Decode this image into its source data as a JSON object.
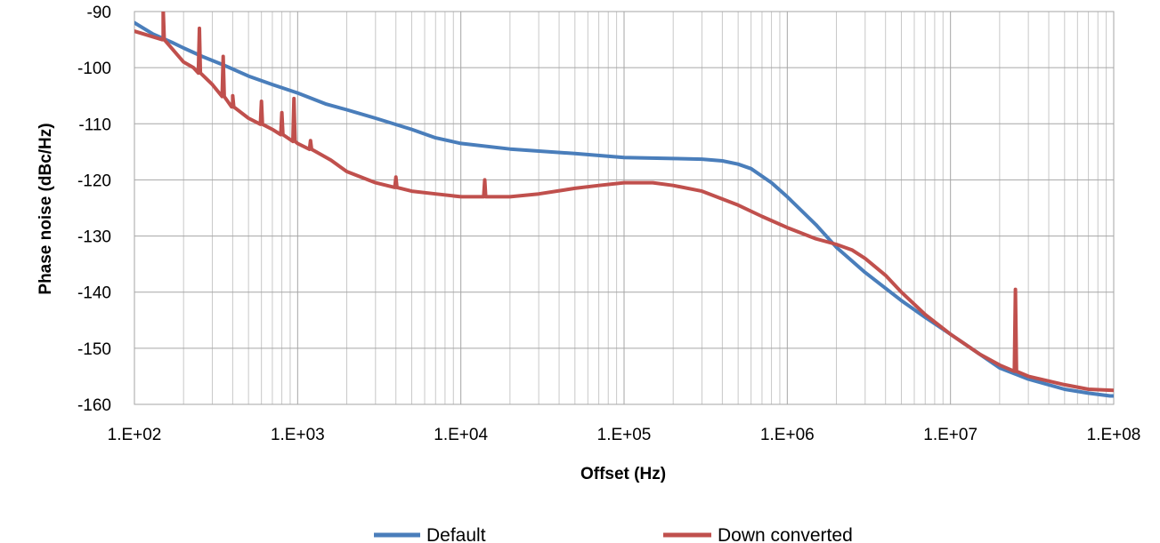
{
  "chart_data": {
    "type": "line",
    "xscale": "log",
    "xlabel": "Offset (Hz)",
    "ylabel": "Phase noise (dBc/Hz)",
    "xlim": [
      100,
      100000000
    ],
    "ylim": [
      -160,
      -90
    ],
    "xticks": [
      100,
      1000,
      10000,
      100000,
      1000000,
      10000000,
      100000000
    ],
    "xtick_labels": [
      "1.E+02",
      "1.E+03",
      "1.E+04",
      "1.E+05",
      "1.E+06",
      "1.E+07",
      "1.E+08"
    ],
    "yticks": [
      -160,
      -150,
      -140,
      -130,
      -120,
      -110,
      -100,
      -90
    ],
    "ytick_labels": [
      "-160",
      "-150",
      "-140",
      "-130",
      "-120",
      "-110",
      "-100",
      "-90"
    ],
    "grid": true,
    "legend_position": "bottom",
    "series": [
      {
        "name": "Default",
        "color": "#4a7ebb",
        "points": [
          [
            100,
            -92
          ],
          [
            130,
            -94
          ],
          [
            170,
            -95.5
          ],
          [
            200,
            -96.5
          ],
          [
            260,
            -98
          ],
          [
            350,
            -99.5
          ],
          [
            500,
            -101.5
          ],
          [
            700,
            -103
          ],
          [
            1000,
            -104.5
          ],
          [
            1500,
            -106.5
          ],
          [
            2000,
            -107.5
          ],
          [
            3000,
            -109
          ],
          [
            5000,
            -111
          ],
          [
            7000,
            -112.5
          ],
          [
            10000,
            -113.5
          ],
          [
            20000,
            -114.5
          ],
          [
            50000,
            -115.3
          ],
          [
            100000,
            -116
          ],
          [
            200000,
            -116.2
          ],
          [
            300000,
            -116.3
          ],
          [
            400000,
            -116.6
          ],
          [
            500000,
            -117.2
          ],
          [
            600000,
            -118
          ],
          [
            800000,
            -120.5
          ],
          [
            1000000,
            -123
          ],
          [
            1500000,
            -128
          ],
          [
            2000000,
            -132
          ],
          [
            3000000,
            -136.5
          ],
          [
            5000000,
            -141.5
          ],
          [
            7000000,
            -144.5
          ],
          [
            10000000,
            -147.5
          ],
          [
            15000000,
            -151
          ],
          [
            20000000,
            -153.5
          ],
          [
            30000000,
            -155.5
          ],
          [
            50000000,
            -157.3
          ],
          [
            70000000,
            -158
          ],
          [
            95000000,
            -158.5
          ],
          [
            100000000,
            -158.5
          ]
        ]
      },
      {
        "name": "Down converted",
        "color": "#c0504d",
        "points": [
          [
            100,
            -93.5
          ],
          [
            150,
            -95
          ],
          [
            200,
            -99
          ],
          [
            230,
            -100
          ],
          [
            300,
            -103
          ],
          [
            400,
            -107
          ],
          [
            500,
            -109
          ],
          [
            700,
            -111
          ],
          [
            1000,
            -113.5
          ],
          [
            1300,
            -115
          ],
          [
            1600,
            -116.5
          ],
          [
            2000,
            -118.5
          ],
          [
            3000,
            -120.5
          ],
          [
            5000,
            -122
          ],
          [
            7000,
            -122.5
          ],
          [
            10000,
            -123
          ],
          [
            20000,
            -123
          ],
          [
            30000,
            -122.5
          ],
          [
            50000,
            -121.5
          ],
          [
            70000,
            -121
          ],
          [
            100000,
            -120.5
          ],
          [
            150000,
            -120.5
          ],
          [
            200000,
            -121
          ],
          [
            300000,
            -122
          ],
          [
            500000,
            -124.5
          ],
          [
            700000,
            -126.5
          ],
          [
            1000000,
            -128.5
          ],
          [
            1500000,
            -130.5
          ],
          [
            2000000,
            -131.5
          ],
          [
            2500000,
            -132.5
          ],
          [
            3000000,
            -134
          ],
          [
            4000000,
            -137
          ],
          [
            5000000,
            -140
          ],
          [
            7000000,
            -144
          ],
          [
            10000000,
            -147.5
          ],
          [
            15000000,
            -151
          ],
          [
            20000000,
            -153
          ],
          [
            30000000,
            -155
          ],
          [
            50000000,
            -156.5
          ],
          [
            70000000,
            -157.3
          ],
          [
            100000000,
            -157.5
          ]
        ],
        "spurs": [
          [
            150,
            -89.5
          ],
          [
            250,
            -93
          ],
          [
            350,
            -98
          ],
          [
            400,
            -105
          ],
          [
            600,
            -106
          ],
          [
            800,
            -108
          ],
          [
            950,
            -105.5
          ],
          [
            1200,
            -113
          ],
          [
            4000,
            -119.5
          ],
          [
            14000,
            -120
          ],
          [
            25000000,
            -139.5
          ]
        ]
      }
    ]
  }
}
